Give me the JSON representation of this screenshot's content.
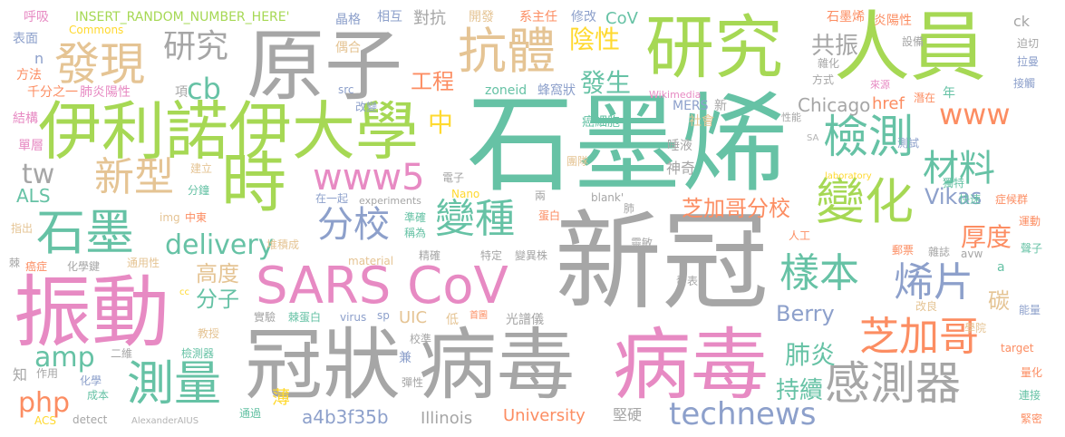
{
  "words": {
    "shimo_xi": "石墨烯",
    "xin_guan": "新冠",
    "yuan_zi": "原子",
    "guan_zhuang": "冠狀",
    "bing_du_1": "病毒",
    "bing_du_2": "病毒",
    "zhen_dong": "振動",
    "ren_yuan": "人員",
    "yan_jiu_big": "研究",
    "illinois_univ": "伊利諾伊大學",
    "shi": "時",
    "sars_cov": "SARS CoV",
    "fa_xian": "發現",
    "kang_ti": "抗體",
    "jian_ce": "檢測",
    "bian_hua": "變化",
    "shi_mo": "石墨",
    "ce_liang": "測量",
    "gan_ce_qi": "感測器",
    "www5": "www5",
    "xin_xing": "新型",
    "bian_zhong": "變種",
    "fen_xiao": "分校",
    "cai_liao": "材料",
    "yang_ben": "樣本",
    "xi_pian": "烯片",
    "zhi_jia_ge": "芝加哥",
    "technews": "technews",
    "delivery": "delivery",
    "yan_jiu_small": "研究",
    "www": "www",
    "zhi_jia_ge_fen_xiao": "芝加哥分校",
    "hou_du": "厚度",
    "fei_yan": "肺炎",
    "chi_xu": "持續",
    "php": "php",
    "amp": "amp",
    "cb": "cb",
    "tw": "tw",
    "yin_xing": "陰性",
    "fa_sheng": "發生",
    "zhong": "中",
    "gong_cheng": "工程",
    "gong_zhen": "共振",
    "gao_du": "高度",
    "fen_zi": "分子",
    "berry": "Berry",
    "vikas": "Vikas",
    "als": "ALS",
    "a4b3f35b": "a4b3f35b",
    "university": "University",
    "illinois": "Illinois",
    "uic": "UIC",
    "tan": "碳",
    "chicago": "Chicago",
    "href": "href",
    "insert_random": "INSERT_RANDOM_NUMBER_HERE'",
    "cov": "CoV",
    "huxi": "呼吸",
    "biao_mian": "表面",
    "fang_fa": "方法",
    "jie_gou": "結構",
    "dan_ceng": "單層",
    "commons": "Commons",
    "n_small": "n",
    "qian_fen": "千分之一",
    "fei_yan_yang": "肺炎陽性",
    "jing_ge": "晶格",
    "xiang_hu": "相互",
    "kai_fa": "開發",
    "xi_zhu_ren": "系主任",
    "xiu_gai": "修改",
    "dui_kang": "對抗",
    "ou_he": "偶合",
    "src": "src",
    "zoneid": "zoneid",
    "feng_wo": "蜂窩狀",
    "wikimedia": "Wikimedia",
    "xiang": "項",
    "mers": "MERS",
    "xin": "新",
    "ai_xi_bao": "癌細胞",
    "she_hui": "社會",
    "gai_bian": "改變",
    "tuo_ye": "唾液",
    "shen_qi": "神奇",
    "tuan_dui": "團隊",
    "dian_zi": "電子",
    "jian_li": "建立",
    "fen_zhong": "分鐘",
    "zai_yi_qi": "在一起",
    "experiments": "experiments",
    "nano": "Nano",
    "liang": "兩",
    "blank": "blank'",
    "fei": "肺",
    "img": "img",
    "zhong_dong": "中東",
    "zhun_que": "準確",
    "cheng_wei": "稱為",
    "dan_bai": "蛋白",
    "dui_ji": "堆積成",
    "jing_que": "精確",
    "te_ding": "特定",
    "bian_yi_zhu": "變異株",
    "ling_min": "靈敏",
    "fa_biao": "發表",
    "ai_zheng": "癌症",
    "hua_xue_jian": "化學鍵",
    "tong_yong": "通用性",
    "material": "material",
    "cc": "cc",
    "shi_yan": "實驗",
    "la_dan_bai": "棘蛋白",
    "virus": "virus",
    "sp": "sp",
    "shou_tu": "首圖",
    "guang_pu": "光譜儀",
    "di": "低",
    "jiao_shou": "教授",
    "jian_ce_qi": "檢測器",
    "er_wei": "二維",
    "jiao_zhun": "校準",
    "jian": "兼",
    "zhi": "知",
    "zuo_yong": "作用",
    "hua_xue": "化學",
    "cheng_ben": "成本",
    "tan_xing": "彈性",
    "acs": "ACS",
    "detect": "detect",
    "alexander": "AlexanderAIUS",
    "tong_guo": "通過",
    "bao": "薄",
    "jian_ying": "堅硬",
    "shimo_xi_small": "石墨烯",
    "yan_yang_xing": "炎陽性",
    "she_bei": "設備",
    "za_hua": "雜化",
    "fang_shi": "方式",
    "lai_yuan": "來源",
    "xing_neng": "性能",
    "qian_zai": "潛在",
    "nian": "年",
    "ce_shi": "測試",
    "sa": "SA",
    "laboratory": "laboratory",
    "du_te": "獨特",
    "kuai_su": "快速",
    "zheng_hou_qun": "症候群",
    "ren_gong": "人工",
    "you_piao": "郵票",
    "za_zhi": "雜誌",
    "avw": "avw",
    "gai_liang": "改良",
    "xue_yuan": "學院",
    "target": "target",
    "ck": "ck",
    "po_qie": "迫切",
    "la_sheng": "拉曼",
    "jie_chu": "接觸",
    "yun_dong": "運動",
    "sheng_zi": "聲子",
    "a_small": "a",
    "neng_liang": "能量",
    "liang_hua": "量化",
    "lian_jie": "連接",
    "jin_mi": "緊密",
    "zhi_chu": "指出",
    "lin": "棘"
  }
}
